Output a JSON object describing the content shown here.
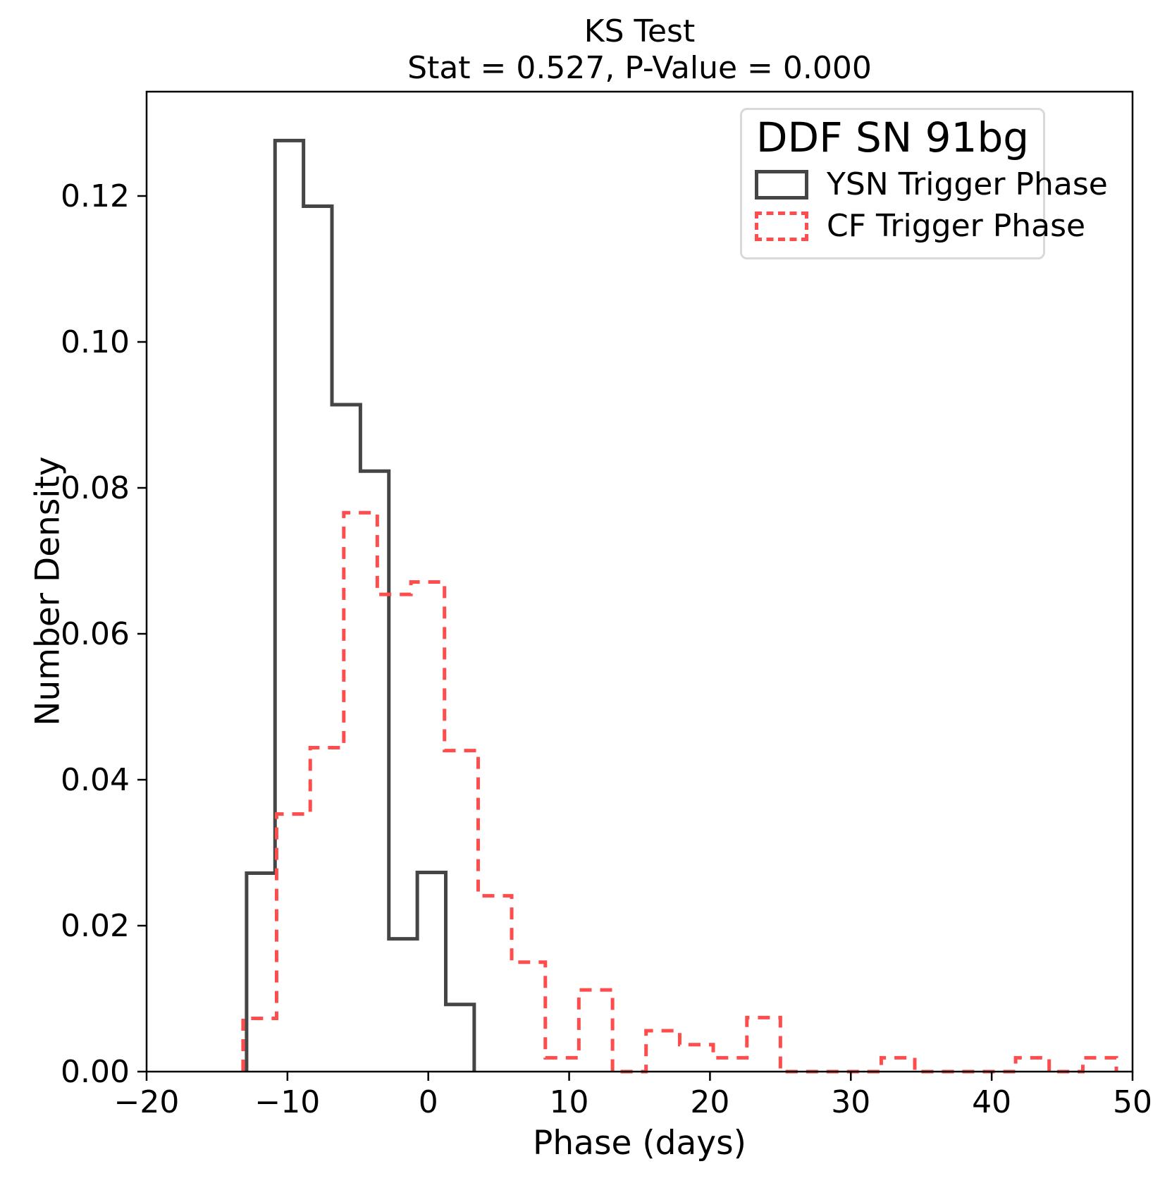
{
  "title": "KS Test",
  "subtitle": "Stat = 0.527, P-Value = 0.000",
  "axes": {
    "xlabel": "Phase (days)",
    "ylabel": "Number Density",
    "xlim": [
      -20,
      50
    ],
    "ylim": [
      0,
      0.1343
    ],
    "x_ticks": {
      "values": [
        -20,
        -10,
        0,
        10,
        20,
        30,
        40,
        50
      ],
      "labels": [
        "−20",
        "−10",
        "0",
        "10",
        "20",
        "30",
        "40",
        "50"
      ]
    },
    "y_ticks": {
      "values": [
        0.0,
        0.02,
        0.04,
        0.06,
        0.08,
        0.1,
        0.12
      ],
      "labels": [
        "0.00",
        "0.02",
        "0.04",
        "0.06",
        "0.08",
        "0.10",
        "0.12"
      ]
    },
    "grid": "off"
  },
  "legend": {
    "title": "DDF SN 91bg",
    "position": "upper right",
    "entries": [
      {
        "label": "YSN Trigger Phase",
        "color": "#454545",
        "linestyle": "solid"
      },
      {
        "label": "CF Trigger Phase",
        "color": "#ff4c4c",
        "linestyle": "dashed"
      }
    ]
  },
  "chart_data": {
    "type": "step-histogram",
    "title": "KS Test, Stat = 0.527, P-Value = 0.000",
    "xlabel": "Phase (days)",
    "ylabel": "Number Density",
    "xlim": [
      -20,
      50
    ],
    "ylim": [
      0,
      0.1343
    ],
    "series": [
      {
        "name": "YSN Trigger Phase",
        "color": "#454545",
        "linestyle": "solid",
        "bin_edges": [
          -12.9,
          -10.88,
          -8.86,
          -6.84,
          -4.82,
          -2.8,
          -0.78,
          1.24,
          3.26
        ],
        "densities": [
          0.0272,
          0.1276,
          0.1186,
          0.0914,
          0.0823,
          0.0182,
          0.0273,
          0.0092
        ]
      },
      {
        "name": "CF Trigger Phase",
        "color": "#ff4c4c",
        "linestyle": "dashed",
        "bin_edges": [
          -13.15,
          -10.77,
          -8.38,
          -6.0,
          -3.62,
          -1.23,
          1.15,
          3.54,
          5.92,
          8.31,
          10.69,
          13.08,
          15.46,
          17.85,
          20.23,
          22.62,
          25.0,
          27.39,
          29.77,
          32.16,
          34.54,
          36.93,
          39.31,
          41.7,
          44.08,
          46.47,
          48.85
        ],
        "densities": [
          0.0073,
          0.0353,
          0.0444,
          0.0766,
          0.0654,
          0.0671,
          0.044,
          0.0241,
          0.015,
          0.0019,
          0.0112,
          0,
          0.0056,
          0.0037,
          0.0019,
          0.0074,
          0,
          0,
          0,
          0.0019,
          0,
          0,
          0,
          0.0019,
          0,
          0.0019
        ]
      }
    ]
  }
}
